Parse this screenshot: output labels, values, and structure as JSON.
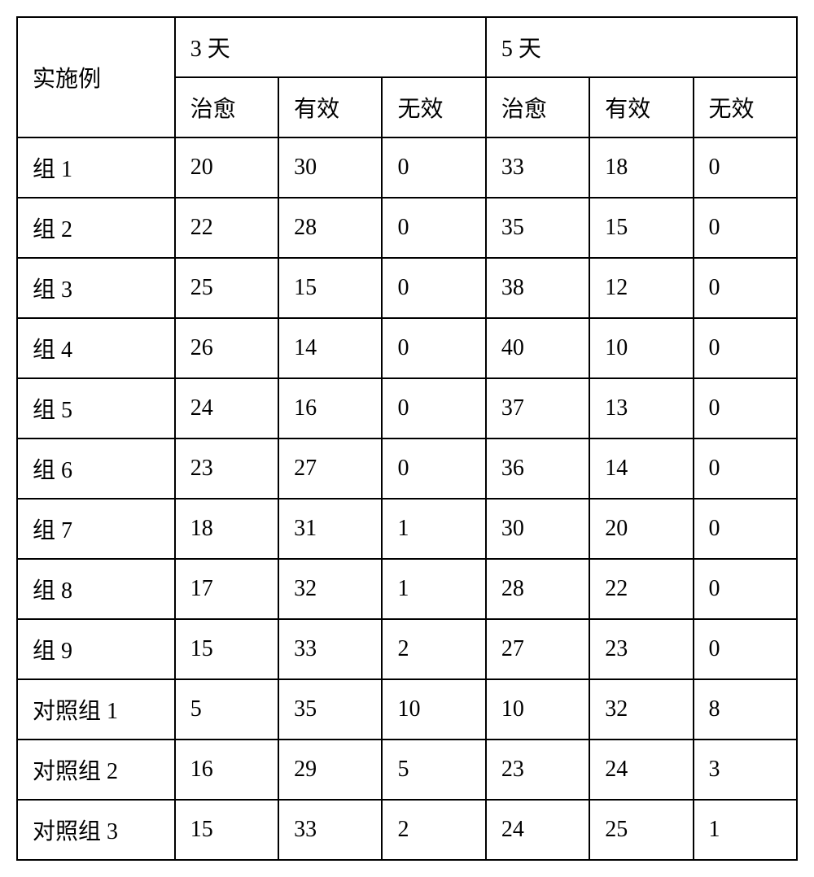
{
  "table": {
    "type": "table",
    "background_color": "#ffffff",
    "border_color": "#000000",
    "border_width": 2,
    "font_family": "SimSun",
    "font_size": 28,
    "text_color": "#000000",
    "cell_padding": 16,
    "header": {
      "row_label": "实施例",
      "period_1": "3 天",
      "period_2": "5 天",
      "sub_columns": [
        "治愈",
        "有效",
        "无效"
      ]
    },
    "rows": [
      {
        "label": "组 1",
        "p1": [
          "20",
          "30",
          "0"
        ],
        "p2": [
          "33",
          "18",
          "0"
        ]
      },
      {
        "label": "组 2",
        "p1": [
          "22",
          "28",
          "0"
        ],
        "p2": [
          "35",
          "15",
          "0"
        ]
      },
      {
        "label": "组 3",
        "p1": [
          "25",
          "15",
          "0"
        ],
        "p2": [
          "38",
          "12",
          "0"
        ]
      },
      {
        "label": "组 4",
        "p1": [
          "26",
          "14",
          "0"
        ],
        "p2": [
          "40",
          "10",
          "0"
        ]
      },
      {
        "label": "组 5",
        "p1": [
          "24",
          "16",
          "0"
        ],
        "p2": [
          "37",
          "13",
          "0"
        ]
      },
      {
        "label": "组 6",
        "p1": [
          "23",
          "27",
          "0"
        ],
        "p2": [
          "36",
          "14",
          "0"
        ]
      },
      {
        "label": "组 7",
        "p1": [
          "18",
          "31",
          "1"
        ],
        "p2": [
          "30",
          "20",
          "0"
        ]
      },
      {
        "label": "组 8",
        "p1": [
          "17",
          "32",
          "1"
        ],
        "p2": [
          "28",
          "22",
          "0"
        ]
      },
      {
        "label": "组 9",
        "p1": [
          "15",
          "33",
          "2"
        ],
        "p2": [
          "27",
          "23",
          "0"
        ]
      },
      {
        "label": "对照组 1",
        "p1": [
          "5",
          "35",
          "10"
        ],
        "p2": [
          "10",
          "32",
          "8"
        ]
      },
      {
        "label": "对照组 2",
        "p1": [
          "16",
          "29",
          "5"
        ],
        "p2": [
          "23",
          "24",
          "3"
        ]
      },
      {
        "label": "对照组 3",
        "p1": [
          "15",
          "33",
          "2"
        ],
        "p2": [
          "24",
          "25",
          "1"
        ]
      }
    ]
  }
}
